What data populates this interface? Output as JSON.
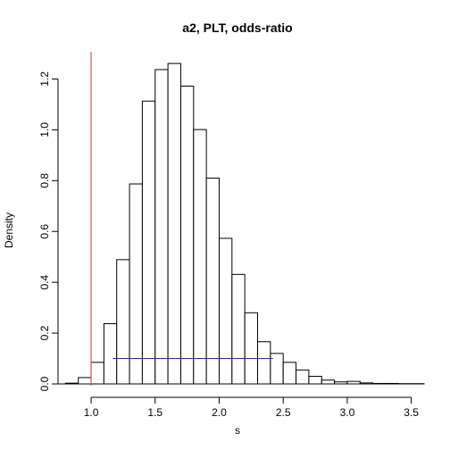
{
  "chart_data": {
    "type": "bar",
    "title": "a2, PLT, odds-ratio",
    "xlabel": "s",
    "ylabel": "Density",
    "xlim": [
      0.7,
      3.6
    ],
    "ylim": [
      0,
      1.3
    ],
    "bin_width": 0.1,
    "bins": [
      {
        "x0": 0.7,
        "x1": 0.8,
        "density": 0.0
      },
      {
        "x0": 0.8,
        "x1": 0.9,
        "density": 0.003
      },
      {
        "x0": 0.9,
        "x1": 1.0,
        "density": 0.025
      },
      {
        "x0": 1.0,
        "x1": 1.1,
        "density": 0.085
      },
      {
        "x0": 1.1,
        "x1": 1.2,
        "density": 0.237
      },
      {
        "x0": 1.2,
        "x1": 1.3,
        "density": 0.489
      },
      {
        "x0": 1.3,
        "x1": 1.4,
        "density": 0.787
      },
      {
        "x0": 1.4,
        "x1": 1.5,
        "density": 1.113
      },
      {
        "x0": 1.5,
        "x1": 1.6,
        "density": 1.237
      },
      {
        "x0": 1.6,
        "x1": 1.7,
        "density": 1.261
      },
      {
        "x0": 1.7,
        "x1": 1.8,
        "density": 1.172
      },
      {
        "x0": 1.8,
        "x1": 1.9,
        "density": 1.001
      },
      {
        "x0": 1.9,
        "x1": 2.0,
        "density": 0.81
      },
      {
        "x0": 2.0,
        "x1": 2.1,
        "density": 0.573
      },
      {
        "x0": 2.1,
        "x1": 2.2,
        "density": 0.431
      },
      {
        "x0": 2.2,
        "x1": 2.3,
        "density": 0.28
      },
      {
        "x0": 2.3,
        "x1": 2.4,
        "density": 0.166
      },
      {
        "x0": 2.4,
        "x1": 2.5,
        "density": 0.12
      },
      {
        "x0": 2.5,
        "x1": 2.6,
        "density": 0.085
      },
      {
        "x0": 2.6,
        "x1": 2.7,
        "density": 0.055
      },
      {
        "x0": 2.7,
        "x1": 2.8,
        "density": 0.03
      },
      {
        "x0": 2.8,
        "x1": 2.9,
        "density": 0.015
      },
      {
        "x0": 2.9,
        "x1": 3.0,
        "density": 0.008
      },
      {
        "x0": 3.0,
        "x1": 3.1,
        "density": 0.01
      },
      {
        "x0": 3.1,
        "x1": 3.2,
        "density": 0.004
      },
      {
        "x0": 3.2,
        "x1": 3.3,
        "density": 0.002
      },
      {
        "x0": 3.3,
        "x1": 3.4,
        "density": 0.002
      },
      {
        "x0": 3.4,
        "x1": 3.5,
        "density": 0.001
      },
      {
        "x0": 3.5,
        "x1": 3.6,
        "density": 0.001
      }
    ],
    "x_ticks": [
      {
        "value": 1.0,
        "label": "1.0"
      },
      {
        "value": 1.5,
        "label": "1.5"
      },
      {
        "value": 2.0,
        "label": "2.0"
      },
      {
        "value": 2.5,
        "label": "2.5"
      },
      {
        "value": 3.0,
        "label": "3.0"
      },
      {
        "value": 3.5,
        "label": "3.5"
      }
    ],
    "y_ticks": [
      {
        "value": 0.0,
        "label": "0.0"
      },
      {
        "value": 0.2,
        "label": "0.2"
      },
      {
        "value": 0.4,
        "label": "0.4"
      },
      {
        "value": 0.6,
        "label": "0.6"
      },
      {
        "value": 0.8,
        "label": "0.8"
      },
      {
        "value": 1.0,
        "label": "1.0"
      },
      {
        "value": 1.2,
        "label": "1.2"
      }
    ],
    "reference_line": {
      "x": 1.0,
      "color": "#e0524a"
    },
    "interval_segment": {
      "x0": 1.17,
      "x1": 2.42,
      "y": 0.1,
      "color": "#2b2f8f"
    },
    "bar_fill": "#ffffff",
    "bar_stroke": "#000000",
    "grid": false,
    "legend": "none"
  }
}
